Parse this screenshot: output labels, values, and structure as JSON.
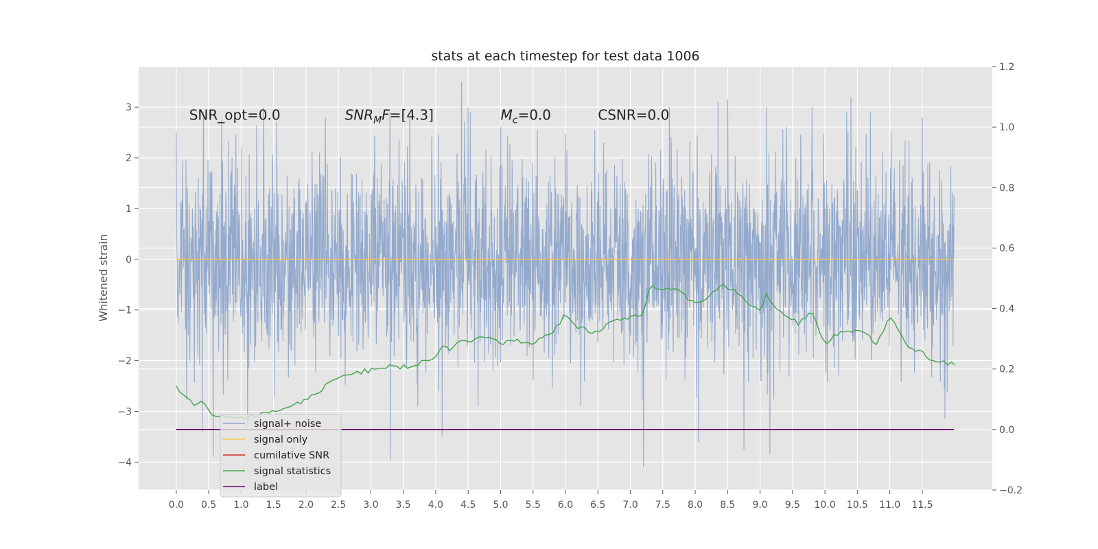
{
  "chart_data": {
    "type": "line",
    "title": "stats at each timestep for test data 1006",
    "ylabel": "Whitened strain",
    "xlabel": "",
    "xlim": [
      -0.58,
      12.58
    ],
    "ylim": [
      -4.55,
      3.8
    ],
    "y2lim": [
      -0.2,
      1.2
    ],
    "x_ticks": [
      "0.0",
      "0.5",
      "1.0",
      "1.5",
      "2.0",
      "2.5",
      "3.0",
      "3.5",
      "4.0",
      "4.5",
      "5.0",
      "5.5",
      "6.0",
      "6.5",
      "7.0",
      "7.5",
      "8.0",
      "8.5",
      "9.0",
      "9.5",
      "10.0",
      "10.5",
      "11.0",
      "11.5"
    ],
    "y_ticks": [
      "3",
      "2",
      "1",
      "0",
      "−1",
      "−2",
      "−3",
      "−4"
    ],
    "y2_ticks": [
      "1.2",
      "1.0",
      "0.8",
      "0.6",
      "0.4",
      "0.2",
      "0.0",
      "−0.2"
    ],
    "grid": true,
    "legend_position": "lower-left",
    "annotations": [
      {
        "parts": [
          {
            "t": "SNR_opt=0.0"
          }
        ],
        "x": 0.2,
        "y": 2.75
      },
      {
        "parts": [
          {
            "t": "SNR",
            "i": true
          },
          {
            "t": "M",
            "i": true,
            "sub": true
          },
          {
            "t": "F",
            "i": true
          },
          {
            "t": "=[4.3]"
          }
        ],
        "x": 2.6,
        "y": 2.75
      },
      {
        "parts": [
          {
            "t": "M",
            "i": true
          },
          {
            "t": "c",
            "i": true,
            "sub": true
          },
          {
            "t": "=0.0"
          }
        ],
        "x": 5.0,
        "y": 2.75
      },
      {
        "parts": [
          {
            "t": "CSNR=0.0"
          }
        ],
        "x": 6.5,
        "y": 2.75
      }
    ],
    "series": [
      {
        "name": "signal+ noise",
        "color": "#8fa6cb",
        "x_range": [
          0.0,
          11.99
        ],
        "noise_sigma": 1.0,
        "spikes": [
          [
            0.0,
            2.5
          ],
          [
            0.4,
            -3.4
          ],
          [
            0.57,
            -3.9
          ],
          [
            0.7,
            2.75
          ],
          [
            1.1,
            -3.3
          ],
          [
            1.35,
            3.0
          ],
          [
            1.55,
            2.7
          ],
          [
            2.3,
            2.8
          ],
          [
            3.3,
            -3.95
          ],
          [
            3.6,
            2.8
          ],
          [
            4.05,
            -2.6
          ],
          [
            4.1,
            -3.5
          ],
          [
            4.4,
            3.5
          ],
          [
            4.5,
            3.0
          ],
          [
            6.0,
            -0.85
          ],
          [
            7.2,
            -4.1
          ],
          [
            7.6,
            3.0
          ],
          [
            8.05,
            -3.6
          ],
          [
            8.35,
            3.1
          ],
          [
            8.5,
            3.15
          ],
          [
            8.75,
            -3.75
          ],
          [
            9.1,
            3.0
          ],
          [
            9.15,
            -3.85
          ],
          [
            9.8,
            3.0
          ],
          [
            10.4,
            3.2
          ],
          [
            11.5,
            2.8
          ],
          [
            11.85,
            -3.15
          ]
        ]
      },
      {
        "name": "signal only",
        "color": "#f5c34a",
        "x": [
          0.0,
          11.99
        ],
        "y": [
          0.0,
          0.0
        ]
      },
      {
        "name": "cumilative SNR",
        "color": "#d62728",
        "x": [],
        "y": []
      },
      {
        "name": "signal statistics",
        "color": "#4aa552",
        "axis": "right",
        "x": [
          0.0,
          0.1,
          0.2,
          0.3,
          0.4,
          0.5,
          0.6,
          0.7,
          0.8,
          0.9,
          1.0,
          1.2,
          1.4,
          1.6,
          1.8,
          2.0,
          2.2,
          2.4,
          2.6,
          2.8,
          3.0,
          3.2,
          3.4,
          3.6,
          3.8,
          4.0,
          4.1,
          4.2,
          4.4,
          4.6,
          4.8,
          5.0,
          5.2,
          5.4,
          5.6,
          5.8,
          6.0,
          6.2,
          6.4,
          6.6,
          6.8,
          7.0,
          7.2,
          7.3,
          7.5,
          7.7,
          7.9,
          8.0,
          8.2,
          8.4,
          8.5,
          8.6,
          8.8,
          9.0,
          9.1,
          9.2,
          9.4,
          9.6,
          9.8,
          10.0,
          10.2,
          10.4,
          10.6,
          10.8,
          11.0,
          11.1,
          11.3,
          11.5,
          11.7,
          11.9,
          12.0
        ],
        "y": [
          0.145,
          0.12,
          0.09,
          0.085,
          0.09,
          0.06,
          0.05,
          0.045,
          0.04,
          0.04,
          0.04,
          0.045,
          0.055,
          0.07,
          0.08,
          0.1,
          0.125,
          0.17,
          0.18,
          0.19,
          0.195,
          0.21,
          0.205,
          0.21,
          0.225,
          0.245,
          0.27,
          0.265,
          0.29,
          0.3,
          0.3,
          0.285,
          0.3,
          0.28,
          0.3,
          0.32,
          0.38,
          0.34,
          0.32,
          0.34,
          0.36,
          0.365,
          0.385,
          0.47,
          0.46,
          0.47,
          0.43,
          0.42,
          0.44,
          0.48,
          0.47,
          0.46,
          0.42,
          0.39,
          0.45,
          0.41,
          0.38,
          0.35,
          0.39,
          0.28,
          0.32,
          0.33,
          0.32,
          0.28,
          0.38,
          0.34,
          0.27,
          0.26,
          0.22,
          0.22,
          0.21
        ],
        "smooth_noise": 0.008
      },
      {
        "name": "label",
        "color": "#6a0a6e",
        "axis": "right",
        "x": [
          0.0,
          11.99
        ],
        "y": [
          0.0,
          0.0
        ]
      }
    ]
  }
}
